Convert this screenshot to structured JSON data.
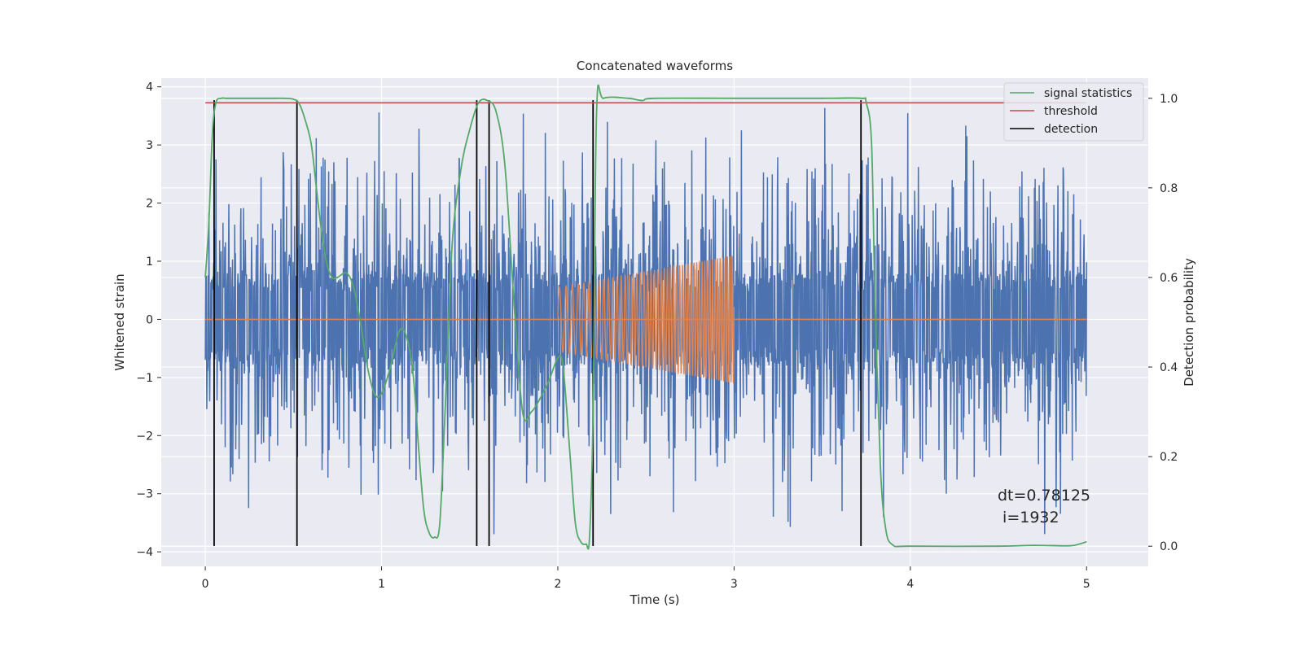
{
  "chart_data": {
    "type": "line",
    "title": "Concatenated waveforms",
    "xlabel": "Time (s)",
    "ylabel": "Whitened strain",
    "ylabel_right": "Detection probability",
    "xlim": [
      -0.25,
      5.35
    ],
    "ylim": [
      -4.25,
      4.15
    ],
    "ylim_right": [
      -0.045,
      1.045
    ],
    "xticks": [
      0,
      1,
      2,
      3,
      4,
      5
    ],
    "xtick_labels": [
      "0",
      "1",
      "2",
      "3",
      "4",
      "5"
    ],
    "yticks": [
      -4,
      -3,
      -2,
      -1,
      0,
      1,
      2,
      3,
      4
    ],
    "ytick_labels": [
      "−4",
      "−3",
      "−2",
      "−1",
      "0",
      "1",
      "2",
      "3",
      "4"
    ],
    "yticks_right": [
      0.0,
      0.2,
      0.4,
      0.6,
      0.8,
      1.0
    ],
    "ytick_labels_right": [
      "0.0",
      "0.2",
      "0.4",
      "0.6",
      "0.8",
      "1.0"
    ],
    "grid": true,
    "legend_position": "top-right",
    "colors": {
      "background": "#eaeaf2",
      "grid": "#ffffff",
      "strain": "#4c72b0",
      "injection": "#dd8452",
      "signal_statistics": "#55a868",
      "threshold": "#c44e52",
      "detection": "#000000"
    },
    "strain": {
      "x_range": [
        0,
        5
      ],
      "baseline_amplitude": 0.8,
      "peak_min": -3.9,
      "peak_max": 3.75
    },
    "injection": {
      "x_range": [
        2,
        3
      ],
      "amplitude_start": 0.55,
      "amplitude_end": 1.1,
      "freq_start": 25,
      "freq_end": 75
    },
    "series": [
      {
        "name": "signal statistics",
        "axis": "right",
        "x": [
          0,
          0.02,
          0.04,
          0.06,
          0.09,
          0.12,
          0.2,
          0.3,
          0.4,
          0.45,
          0.5,
          0.53,
          0.56,
          0.6,
          0.63,
          0.66,
          0.69,
          0.72,
          0.75,
          0.8,
          0.84,
          0.88,
          0.92,
          0.96,
          1.0,
          1.05,
          1.1,
          1.14,
          1.18,
          1.21,
          1.24,
          1.27,
          1.3,
          1.33,
          1.36,
          1.4,
          1.45,
          1.5,
          1.55,
          1.6,
          1.65,
          1.7,
          1.75,
          1.8,
          1.85,
          1.9,
          1.95,
          2.0,
          2.03,
          2.07,
          2.1,
          2.13,
          2.16,
          2.18,
          2.2,
          2.22,
          2.26,
          2.4,
          2.48,
          2.55,
          3.0,
          3.5,
          3.72,
          3.75,
          3.78,
          3.8,
          3.83,
          3.86,
          3.9,
          4.0,
          4.5,
          4.7,
          4.9,
          4.96,
          5.0
        ],
        "y": [
          0.6,
          0.72,
          0.92,
          0.99,
          1.0,
          1.0,
          1.0,
          1.0,
          1.0,
          1.0,
          0.998,
          0.99,
          0.96,
          0.9,
          0.8,
          0.7,
          0.63,
          0.6,
          0.6,
          0.61,
          0.58,
          0.5,
          0.4,
          0.34,
          0.34,
          0.4,
          0.48,
          0.47,
          0.38,
          0.22,
          0.08,
          0.03,
          0.02,
          0.05,
          0.3,
          0.67,
          0.84,
          0.93,
          0.99,
          0.995,
          0.97,
          0.85,
          0.55,
          0.3,
          0.3,
          0.33,
          0.37,
          0.42,
          0.4,
          0.2,
          0.05,
          0.01,
          0.005,
          0.02,
          0.3,
          0.97,
          1.0,
          1.0,
          0.995,
          1.0,
          1.0,
          1.0,
          1.0,
          0.99,
          0.9,
          0.55,
          0.18,
          0.04,
          0.003,
          0.0,
          0.0,
          0.002,
          0.001,
          0.005,
          0.01
        ]
      },
      {
        "name": "threshold",
        "axis": "right",
        "x": [
          0,
          5
        ],
        "y": [
          0.99,
          0.99
        ]
      },
      {
        "name": "detection",
        "axis": "left",
        "x": [
          0.05,
          0.52,
          1.54,
          1.61,
          2.2,
          3.72
        ],
        "y_range": [
          -3.9,
          3.77
        ]
      }
    ],
    "annotation": {
      "lines": [
        "dt=0.78125",
        " i=1932"
      ],
      "x": 4.5,
      "y": -3.05
    }
  }
}
